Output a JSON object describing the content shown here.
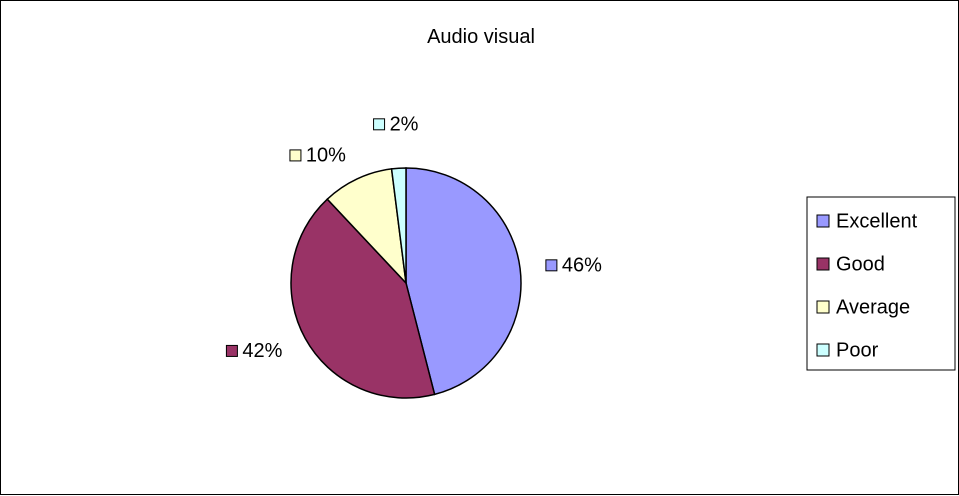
{
  "chart_data": {
    "type": "pie",
    "title": "Audio visual",
    "categories": [
      "Excellent",
      "Good",
      "Average",
      "Poor"
    ],
    "values": [
      46,
      42,
      10,
      2
    ],
    "data_labels": [
      "46%",
      "42%",
      "10%",
      "2%"
    ],
    "colors": [
      "#9999ff",
      "#993366",
      "#ffffcc",
      "#ccffff"
    ],
    "legend": {
      "position": "right",
      "entries": [
        "Excellent",
        "Good",
        "Average",
        "Poor"
      ]
    },
    "start_angle": "12 o'clock",
    "direction": "clockwise"
  }
}
